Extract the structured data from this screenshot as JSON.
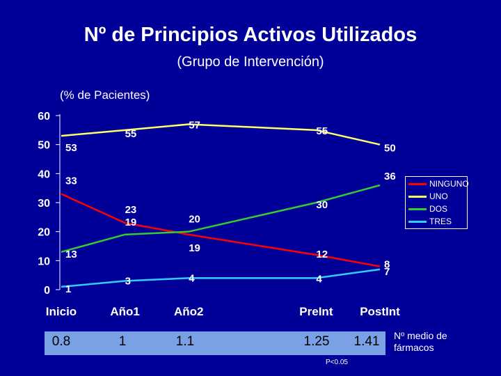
{
  "title": "Nº de Principios Activos Utilizados",
  "subtitle": "(Grupo de Intervención)",
  "chart_data": {
    "type": "line",
    "title": "Nº de Principios Activos Utilizados",
    "subtitle": "(Grupo de Intervención)",
    "ylabel": "(% de Pacientes)",
    "xlabel": "",
    "categories": [
      "Inicio",
      "Año1",
      "Año2",
      "PreInt",
      "PostInt"
    ],
    "x": [
      0,
      1,
      2,
      4,
      5
    ],
    "ylim": [
      0,
      60
    ],
    "yticks": [
      "0",
      "10",
      "20",
      "30",
      "40",
      "50",
      "60"
    ],
    "grid": false,
    "legend_position": "right",
    "series": [
      {
        "name": "NINGUNO",
        "color": "#ff0000",
        "values": [
          33,
          23,
          19,
          12,
          8
        ],
        "labels": [
          "33",
          "23",
          "19",
          "12",
          "8"
        ]
      },
      {
        "name": "UNO",
        "color": "#ffff66",
        "values": [
          53,
          55,
          57,
          55,
          50
        ],
        "labels": [
          "53",
          "55",
          "57",
          "55",
          "50"
        ]
      },
      {
        "name": "DOS",
        "color": "#33cc33",
        "values": [
          13,
          19,
          20,
          30,
          36
        ],
        "labels": [
          "13",
          "19",
          "20",
          "30",
          "36"
        ]
      },
      {
        "name": "TRES",
        "color": "#33ccff",
        "values": [
          1,
          3,
          4,
          4,
          7
        ],
        "labels": [
          "1",
          "3",
          "4",
          "4",
          "7"
        ]
      }
    ]
  },
  "means": {
    "values": [
      "0.8",
      "1",
      "1.1",
      "1.25",
      "1.41"
    ],
    "label": "Nº medio de fármacos",
    "note": "P<0.05"
  }
}
